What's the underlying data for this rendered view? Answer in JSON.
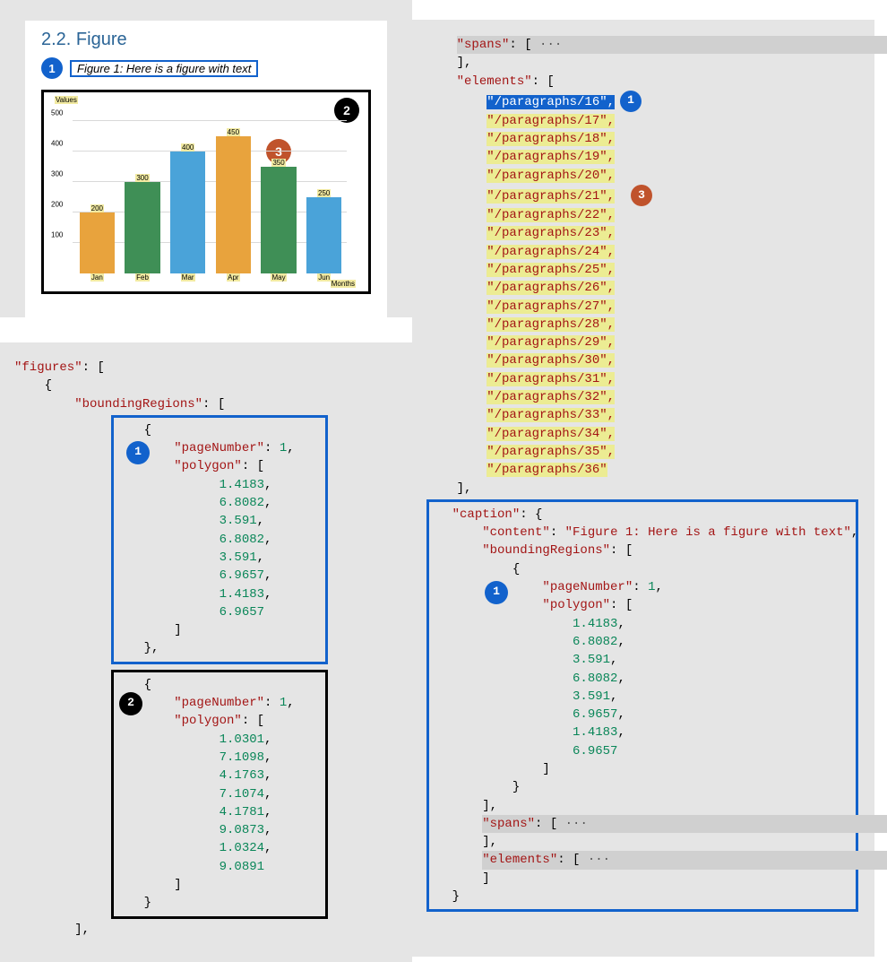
{
  "colors": {
    "blue": "#1262cc",
    "black": "#000000",
    "orange_badge": "#c0532c",
    "bar_orange": "#e8a33d",
    "bar_green": "#3f8f56",
    "bar_blue": "#4aa3d9",
    "highlight_yellow": "#ecec93",
    "highlight_grey": "#d0d0d0",
    "panel_grey": "#e5e5e5"
  },
  "figure": {
    "heading": "2.2. Figure",
    "caption": "Figure 1: Here is a figure with text",
    "badge_caption": "1",
    "badge_chart_corner": "2",
    "badge_chart_mid": "3",
    "chart": {
      "y_axis_label": "Values",
      "x_axis_label_end": "Months",
      "ymax": 500,
      "y_ticks": [
        100,
        200,
        300,
        400,
        500
      ],
      "bars": [
        {
          "label": "Jan",
          "value": 200,
          "color": "#e8a33d"
        },
        {
          "label": "Feb",
          "value": 300,
          "color": "#3f8f56"
        },
        {
          "label": "Mar",
          "value": 400,
          "color": "#4aa3d9"
        },
        {
          "label": "Apr",
          "value": 450,
          "color": "#e8a33d"
        },
        {
          "label": "May",
          "value": 350,
          "color": "#3f8f56"
        },
        {
          "label": "Jun",
          "value": 250,
          "color": "#4aa3d9"
        }
      ]
    }
  },
  "left_code": {
    "figures_key": "\"figures\"",
    "bounding_key": "\"boundingRegions\"",
    "box1": {
      "badge": "1",
      "page_key": "\"pageNumber\"",
      "page_val": "1",
      "polygon_key": "\"polygon\"",
      "values": [
        "1.4183",
        "6.8082",
        "3.591",
        "6.8082",
        "3.591",
        "6.9657",
        "1.4183",
        "6.9657"
      ]
    },
    "box2": {
      "badge": "2",
      "page_key": "\"pageNumber\"",
      "page_val": "1",
      "polygon_key": "\"polygon\"",
      "values": [
        "1.0301",
        "7.1098",
        "4.1763",
        "7.1074",
        "4.1781",
        "9.0873",
        "1.0324",
        "9.0891"
      ]
    }
  },
  "right_code": {
    "spans_line": "\"spans\": [ ···",
    "elements_key": "\"elements\"",
    "element_selected": "\"/paragraphs/16\",",
    "badge_selected": "1",
    "badge_list": "3",
    "element_paths": [
      "\"/paragraphs/17\",",
      "\"/paragraphs/18\",",
      "\"/paragraphs/19\",",
      "\"/paragraphs/20\",",
      "\"/paragraphs/21\",",
      "\"/paragraphs/22\",",
      "\"/paragraphs/23\",",
      "\"/paragraphs/24\",",
      "\"/paragraphs/25\",",
      "\"/paragraphs/26\",",
      "\"/paragraphs/27\",",
      "\"/paragraphs/28\",",
      "\"/paragraphs/29\",",
      "\"/paragraphs/30\",",
      "\"/paragraphs/31\",",
      "\"/paragraphs/32\",",
      "\"/paragraphs/33\",",
      "\"/paragraphs/34\",",
      "\"/paragraphs/35\",",
      "\"/paragraphs/36\""
    ],
    "caption_box": {
      "badge": "1",
      "caption_key": "\"caption\"",
      "content_key": "\"content\"",
      "content_val": "\"Figure 1: Here is a figure with text\"",
      "bounding_key": "\"boundingRegions\"",
      "page_key": "\"pageNumber\"",
      "page_val": "1",
      "polygon_key": "\"polygon\"",
      "polygon_values": [
        "1.4183",
        "6.8082",
        "3.591",
        "6.8082",
        "3.591",
        "6.9657",
        "1.4183",
        "6.9657"
      ],
      "spans_line": "\"spans\": [ ···",
      "elements_line": "\"elements\": [ ···"
    }
  }
}
